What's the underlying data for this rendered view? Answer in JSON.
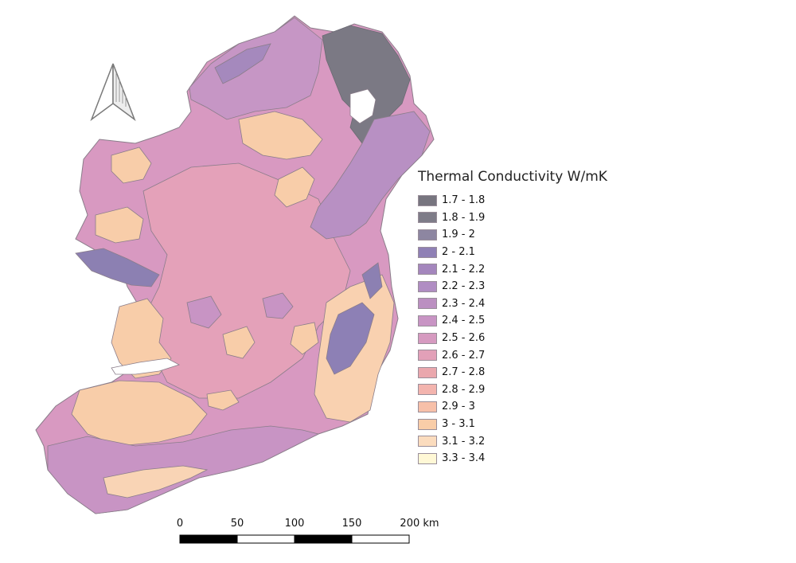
{
  "legend": {
    "title": "Thermal Conductivity W/mK",
    "items": [
      {
        "label": "1.7 - 1.8",
        "color": "#77757f"
      },
      {
        "label": "1.8 - 1.9",
        "color": "#7e7c88"
      },
      {
        "label": "1.9 - 2",
        "color": "#8d86a1"
      },
      {
        "label": "2 - 2.1",
        "color": "#8f80b5"
      },
      {
        "label": "2.1 - 2.2",
        "color": "#a486bd"
      },
      {
        "label": "2.2 - 2.3",
        "color": "#b08dc3"
      },
      {
        "label": "2.3 - 2.4",
        "color": "#bb8fc1"
      },
      {
        "label": "2.4 - 2.5",
        "color": "#c894c4"
      },
      {
        "label": "2.5 - 2.6",
        "color": "#d69ac0"
      },
      {
        "label": "2.6 - 2.7",
        "color": "#e2a0b8"
      },
      {
        "label": "2.7 - 2.8",
        "color": "#eaa7ad"
      },
      {
        "label": "2.8 - 2.9",
        "color": "#f3b4ae"
      },
      {
        "label": "2.9 - 3",
        "color": "#f7c0a9"
      },
      {
        "label": "3 - 3.1",
        "color": "#f9cda8"
      },
      {
        "label": "3.1 - 3.2",
        "color": "#fbdcbe"
      },
      {
        "label": "3.3 - 3.4",
        "color": "#fff8d6"
      }
    ]
  },
  "scale_bar": {
    "labels": [
      "0",
      "50",
      "100",
      "150",
      "200 km"
    ]
  },
  "north_arrow": {
    "icon": "north-arrow-icon"
  }
}
